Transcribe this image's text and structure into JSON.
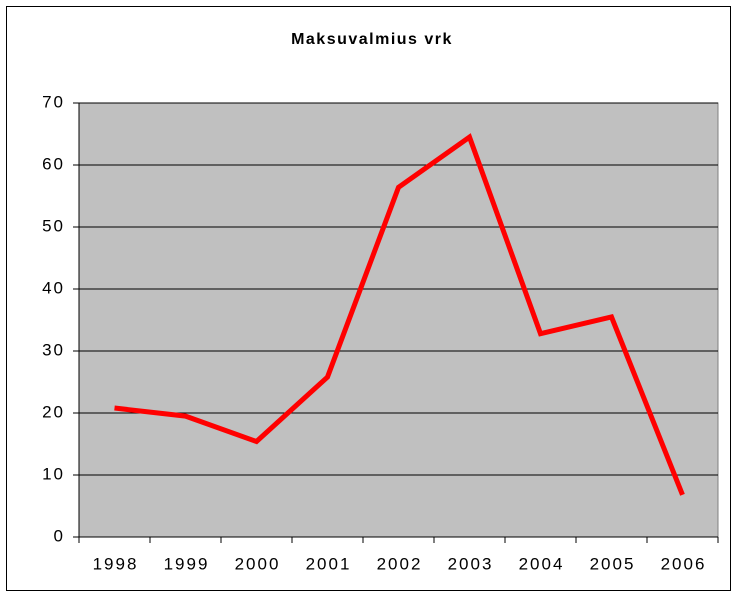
{
  "chart_data": {
    "type": "line",
    "title": "Maksuvalmius vrk",
    "categories": [
      "1998",
      "1999",
      "2000",
      "2001",
      "2002",
      "2003",
      "2004",
      "2005",
      "2006"
    ],
    "values": [
      20.8,
      19.5,
      15.4,
      25.8,
      56.4,
      64.5,
      32.8,
      35.5,
      6.8
    ],
    "color": "#ff0000",
    "plot_background": "#c0c0c0",
    "ylim": [
      0,
      70
    ],
    "yticks": [
      0,
      10,
      20,
      30,
      40,
      50,
      60,
      70
    ],
    "grid": true
  }
}
